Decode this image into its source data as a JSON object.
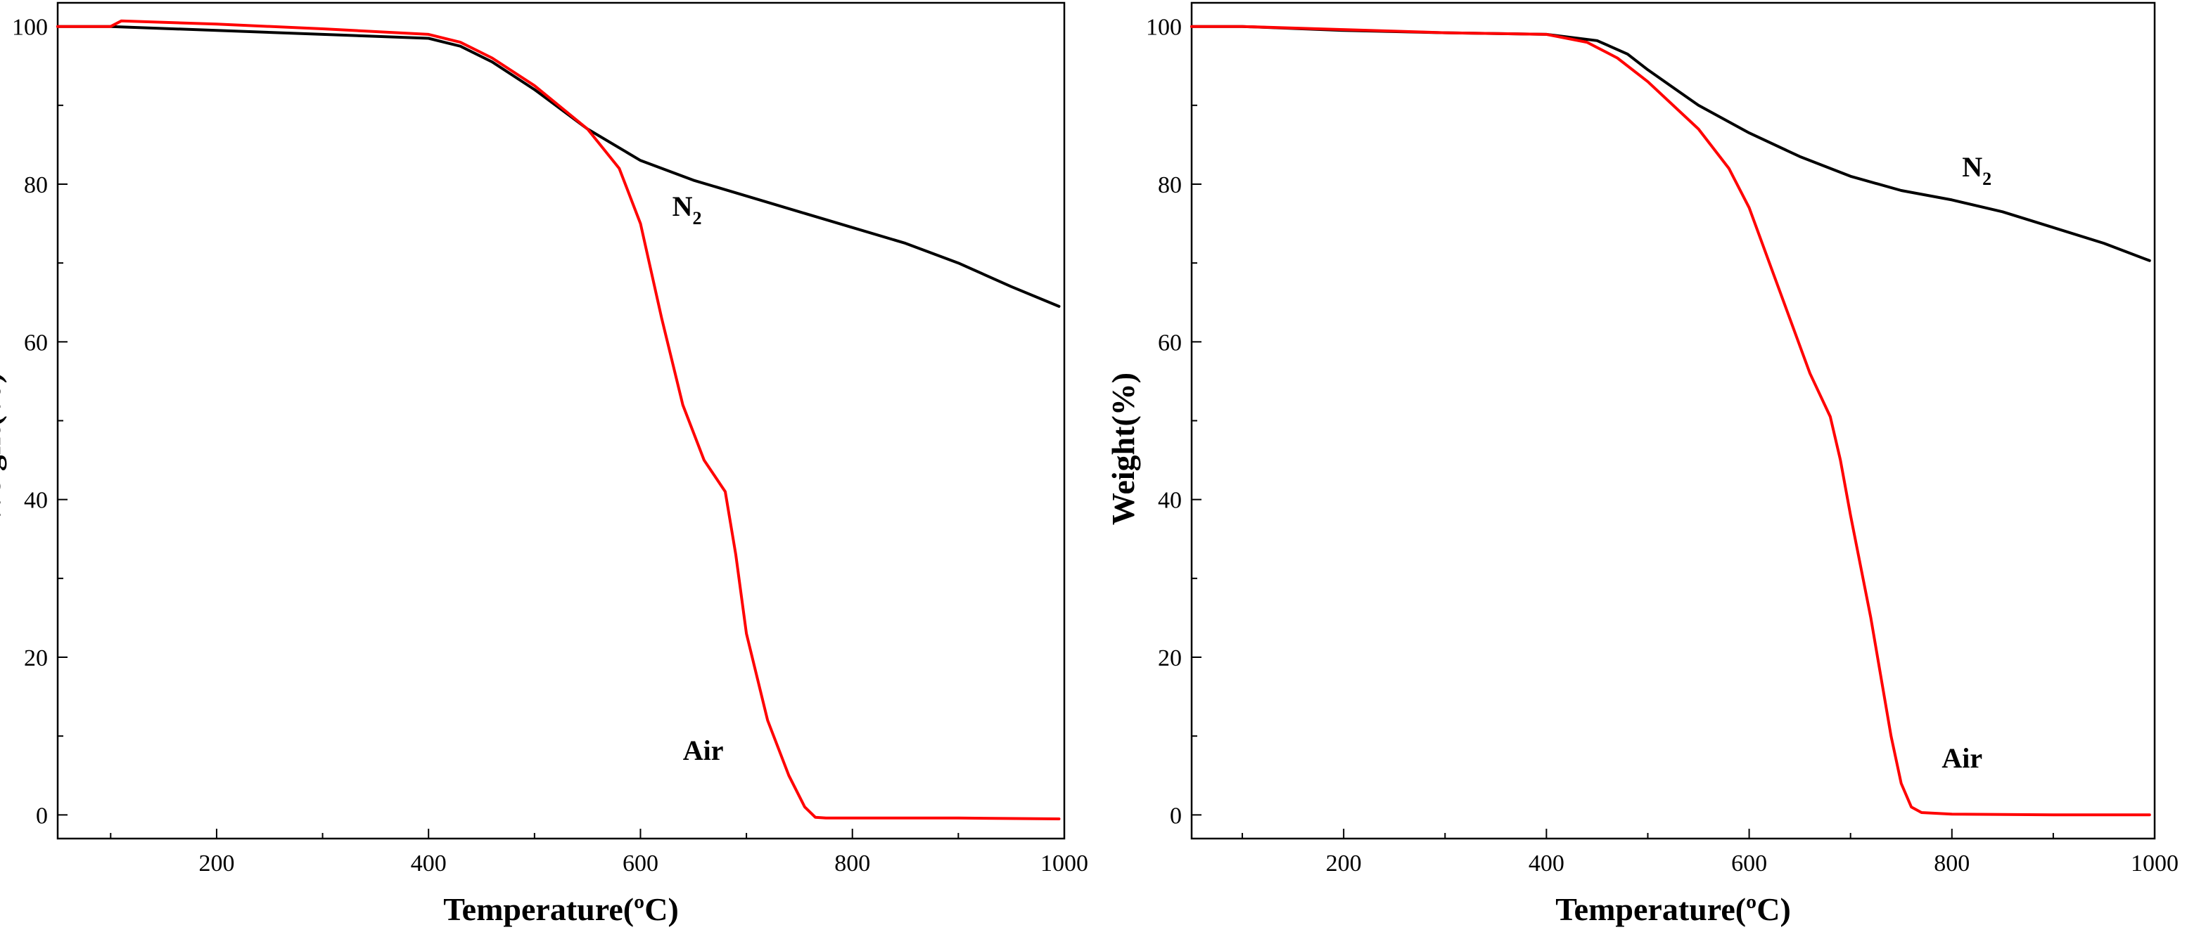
{
  "chart_data": [
    {
      "type": "line",
      "title": "",
      "xlabel": "Temperature(ºC)",
      "ylabel": "Weight(%)",
      "xlim": [
        50,
        1000
      ],
      "ylim": [
        -3,
        103
      ],
      "xticks": [
        200,
        400,
        600,
        800,
        1000
      ],
      "yticks": [
        0,
        20,
        40,
        60,
        80,
        100
      ],
      "grid": false,
      "series": [
        {
          "name": "N2",
          "color": "#000000",
          "x": [
            50,
            100,
            200,
            300,
            400,
            430,
            460,
            500,
            550,
            600,
            650,
            700,
            750,
            800,
            850,
            900,
            950,
            995
          ],
          "y": [
            100,
            100,
            99.5,
            99.0,
            98.5,
            97.5,
            95.5,
            92.0,
            87.0,
            83.0,
            80.5,
            78.5,
            76.5,
            74.5,
            72.5,
            70.0,
            67.0,
            64.5
          ]
        },
        {
          "name": "Air",
          "color": "#ff0000",
          "x": [
            50,
            100,
            110,
            200,
            300,
            400,
            430,
            460,
            500,
            550,
            580,
            600,
            620,
            640,
            660,
            680,
            690,
            700,
            720,
            740,
            755,
            765,
            775,
            800,
            900,
            995
          ],
          "y": [
            100,
            100,
            100.7,
            100.3,
            99.7,
            99.0,
            98.0,
            96.0,
            92.5,
            87.0,
            82.0,
            75.0,
            63.0,
            52.0,
            45.0,
            41.0,
            33.0,
            23.0,
            12.0,
            5.0,
            1.0,
            -0.3,
            -0.4,
            -0.4,
            -0.4,
            -0.5
          ]
        }
      ],
      "annotations": [
        {
          "main": "N",
          "sub": "2",
          "x": 630,
          "y": 76
        },
        {
          "main": "Air",
          "sub": "",
          "x": 640,
          "y": 7
        }
      ]
    },
    {
      "type": "line",
      "title": "",
      "xlabel": "Temperature(ºC)",
      "ylabel": "Weight(%)",
      "xlim": [
        50,
        1000
      ],
      "ylim": [
        -3,
        103
      ],
      "xticks": [
        200,
        400,
        600,
        800,
        1000
      ],
      "yticks": [
        0,
        20,
        40,
        60,
        80,
        100
      ],
      "grid": false,
      "series": [
        {
          "name": "N2",
          "color": "#000000",
          "x": [
            50,
            100,
            200,
            300,
            400,
            450,
            480,
            500,
            550,
            600,
            650,
            700,
            750,
            800,
            850,
            900,
            950,
            995
          ],
          "y": [
            100,
            100,
            99.5,
            99.2,
            99.0,
            98.2,
            96.5,
            94.5,
            90.0,
            86.5,
            83.5,
            81.0,
            79.2,
            78.0,
            76.5,
            74.5,
            72.5,
            70.3
          ]
        },
        {
          "name": "Air",
          "color": "#ff0000",
          "x": [
            50,
            100,
            200,
            300,
            400,
            440,
            470,
            500,
            550,
            580,
            600,
            620,
            640,
            660,
            680,
            690,
            700,
            720,
            740,
            750,
            760,
            770,
            800,
            900,
            995
          ],
          "y": [
            100,
            100,
            99.6,
            99.2,
            99.0,
            98.0,
            96.0,
            93.0,
            87.0,
            82.0,
            77.0,
            70.0,
            63.0,
            56.0,
            50.5,
            45.0,
            38.0,
            25.0,
            10.0,
            4.0,
            1.0,
            0.3,
            0.1,
            0.0,
            0.0
          ]
        }
      ],
      "annotations": [
        {
          "main": "N",
          "sub": "2",
          "x": 810,
          "y": 81
        },
        {
          "main": "Air",
          "sub": "",
          "x": 790,
          "y": 6
        }
      ]
    }
  ]
}
